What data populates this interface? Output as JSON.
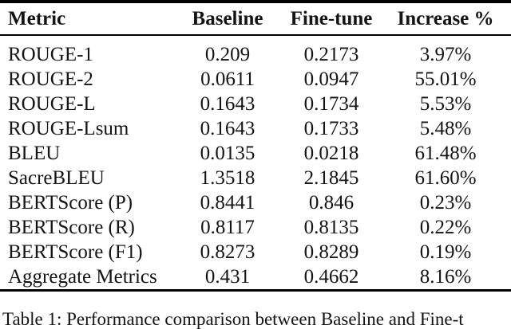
{
  "table": {
    "headers": [
      "Metric",
      "Baseline",
      "Fine-tune",
      "Increase %"
    ],
    "rows": [
      {
        "metric": "ROUGE-1",
        "baseline": "0.209",
        "finetune": "0.2173",
        "increase": "3.97%"
      },
      {
        "metric": "ROUGE-2",
        "baseline": "0.0611",
        "finetune": "0.0947",
        "increase": "55.01%"
      },
      {
        "metric": "ROUGE-L",
        "baseline": "0.1643",
        "finetune": "0.1734",
        "increase": "5.53%"
      },
      {
        "metric": "ROUGE-Lsum",
        "baseline": "0.1643",
        "finetune": "0.1733",
        "increase": "5.48%"
      },
      {
        "metric": "BLEU",
        "baseline": "0.0135",
        "finetune": "0.0218",
        "increase": "61.48%"
      },
      {
        "metric": "SacreBLEU",
        "baseline": "1.3518",
        "finetune": "2.1845",
        "increase": "61.60%"
      },
      {
        "metric": "BERTScore (P)",
        "baseline": "0.8441",
        "finetune": "0.846",
        "increase": "0.23%"
      },
      {
        "metric": "BERTScore (R)",
        "baseline": "0.8117",
        "finetune": "0.8135",
        "increase": "0.22%"
      },
      {
        "metric": "BERTScore (F1)",
        "baseline": "0.8273",
        "finetune": "0.8289",
        "increase": "0.19%"
      },
      {
        "metric": "Aggregate Metrics",
        "baseline": "0.431",
        "finetune": "0.4662",
        "increase": "8.16%"
      }
    ]
  },
  "caption": {
    "visible_text": "Table 1: Performance comparison between Baseline and Fine-t"
  },
  "colors": {
    "background": "#ffffff",
    "text": "#141414",
    "rule": "#000000"
  }
}
